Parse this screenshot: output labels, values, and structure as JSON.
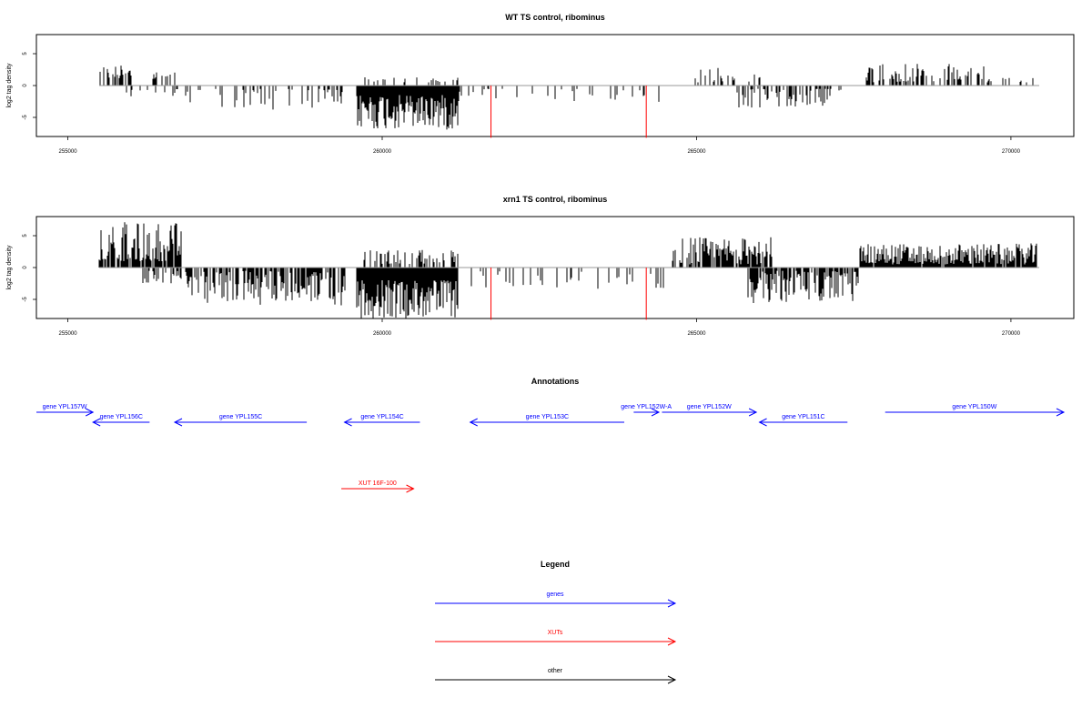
{
  "chart_data": [
    {
      "type": "bar",
      "title": "WT TS control, ribominus",
      "ylabel": "log2 tag density",
      "xlim": [
        254500,
        271000
      ],
      "ylim": [
        -8,
        8
      ],
      "xticks": [
        255000,
        260000,
        265000,
        270000
      ],
      "yticks": [
        -5,
        0,
        5
      ],
      "grid": false,
      "region_blocks": [
        {
          "start": 255500,
          "end": 256000,
          "density": 0.55,
          "min": 1.0,
          "max": 3.2,
          "sign": 1
        },
        {
          "start": 256300,
          "end": 256700,
          "density": 0.35,
          "min": 0.8,
          "max": 2.5,
          "sign": 1
        },
        {
          "start": 255900,
          "end": 256900,
          "density": 0.2,
          "min": 0.5,
          "max": 1.8,
          "sign": -1
        },
        {
          "start": 256900,
          "end": 259400,
          "density": 0.28,
          "min": 0.5,
          "max": 3.8,
          "sign": -1
        },
        {
          "start": 259600,
          "end": 261200,
          "density": 1.0,
          "min": 1.5,
          "max": 7.0,
          "sign": -1
        },
        {
          "start": 259700,
          "end": 261200,
          "density": 0.2,
          "min": 0.5,
          "max": 1.3,
          "sign": 1
        },
        {
          "start": 261200,
          "end": 264500,
          "density": 0.1,
          "min": 0.5,
          "max": 2.8,
          "sign": -1
        },
        {
          "start": 264800,
          "end": 266000,
          "density": 0.25,
          "min": 0.5,
          "max": 3.0,
          "sign": 1
        },
        {
          "start": 265600,
          "end": 267300,
          "density": 0.4,
          "min": 0.5,
          "max": 3.6,
          "sign": -1
        },
        {
          "start": 267700,
          "end": 269700,
          "density": 0.5,
          "min": 0.5,
          "max": 3.4,
          "sign": 1
        },
        {
          "start": 269700,
          "end": 270400,
          "density": 0.2,
          "min": 0.5,
          "max": 1.5,
          "sign": 1
        }
      ],
      "red_marks": [
        {
          "x": 261730,
          "y": -8.2
        },
        {
          "x": 264200,
          "y": -8.2
        }
      ],
      "baseline_range": [
        255500,
        270450
      ]
    },
    {
      "type": "bar",
      "title": "xrn1 TS control, ribominus",
      "ylabel": "log2 tag density",
      "xlim": [
        254500,
        271000
      ],
      "ylim": [
        -8,
        8
      ],
      "xticks": [
        255000,
        260000,
        265000,
        270000
      ],
      "yticks": [
        -5,
        0,
        5
      ],
      "grid": false,
      "region_blocks": [
        {
          "start": 255500,
          "end": 256800,
          "density": 0.85,
          "min": 1.0,
          "max": 7.2,
          "sign": 1
        },
        {
          "start": 256200,
          "end": 256900,
          "density": 0.35,
          "min": 0.5,
          "max": 2.5,
          "sign": -1
        },
        {
          "start": 256900,
          "end": 259400,
          "density": 0.65,
          "min": 0.5,
          "max": 6.0,
          "sign": -1
        },
        {
          "start": 259600,
          "end": 261200,
          "density": 1.0,
          "min": 2.0,
          "max": 8.0,
          "sign": -1
        },
        {
          "start": 259700,
          "end": 261200,
          "density": 0.45,
          "min": 0.5,
          "max": 2.8,
          "sign": 1
        },
        {
          "start": 261200,
          "end": 264500,
          "density": 0.15,
          "min": 0.5,
          "max": 3.5,
          "sign": -1
        },
        {
          "start": 264600,
          "end": 266200,
          "density": 0.7,
          "min": 0.5,
          "max": 4.8,
          "sign": 1
        },
        {
          "start": 265800,
          "end": 267600,
          "density": 0.75,
          "min": 0.5,
          "max": 5.6,
          "sign": -1
        },
        {
          "start": 267600,
          "end": 270400,
          "density": 0.95,
          "min": 0.5,
          "max": 3.8,
          "sign": 1
        }
      ],
      "red_marks": [
        {
          "x": 261730,
          "y": -8.2
        },
        {
          "x": 264200,
          "y": -8.2
        }
      ],
      "baseline_range": [
        255500,
        270450
      ]
    }
  ],
  "annotations": {
    "title": "Annotations",
    "genes": [
      {
        "label": "gene YPL157W",
        "start": 254500,
        "end": 255400,
        "strand": "+",
        "row": 0
      },
      {
        "label": "gene YPL156C",
        "start": 255400,
        "end": 256300,
        "strand": "-",
        "row": 1
      },
      {
        "label": "gene YPL155C",
        "start": 256700,
        "end": 258800,
        "strand": "-",
        "row": 1
      },
      {
        "label": "gene YPL154C",
        "start": 259400,
        "end": 260600,
        "strand": "-",
        "row": 1
      },
      {
        "label": "gene YPL153C",
        "start": 261400,
        "end": 263850,
        "strand": "-",
        "row": 1
      },
      {
        "label": "gene YPL152W-A",
        "start": 264000,
        "end": 264400,
        "strand": "+",
        "row": 0
      },
      {
        "label": "gene YPL152W",
        "start": 264450,
        "end": 265950,
        "strand": "+",
        "row": 0
      },
      {
        "label": "gene YPL151C",
        "start": 266000,
        "end": 267400,
        "strand": "-",
        "row": 1
      },
      {
        "label": "gene YPL150W",
        "start": 268000,
        "end": 271000,
        "strand": "+",
        "row": 0
      }
    ],
    "xuts": [
      {
        "label": "XUT 16F-100",
        "start": 259350,
        "end": 260500,
        "strand": "+"
      }
    ]
  },
  "legend": {
    "title": "Legend",
    "entries": [
      {
        "label": "genes",
        "color": "#0000ff"
      },
      {
        "label": "XUTs",
        "color": "#ff0000"
      },
      {
        "label": "other",
        "color": "#000000"
      }
    ]
  },
  "colors": {
    "gene": "#0000ff",
    "xut": "#ff0000",
    "other": "#000000",
    "bars": "#000000",
    "baseline": "#999999",
    "marker": "#ff0000"
  }
}
